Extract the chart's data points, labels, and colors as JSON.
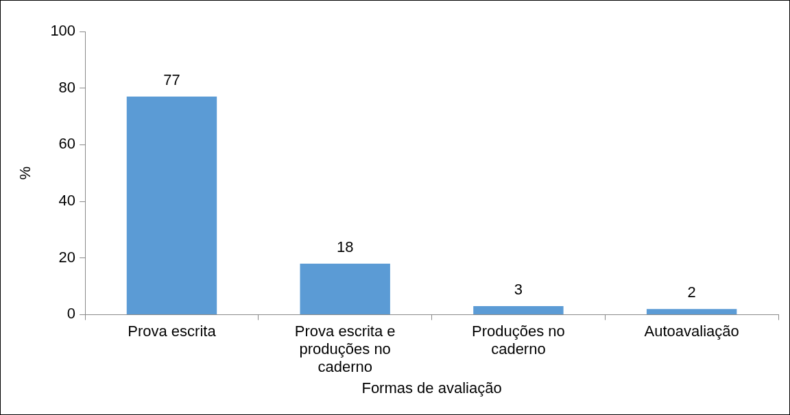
{
  "chart_data": {
    "type": "bar",
    "xlabel": "Formas de avaliação",
    "ylabel": "%",
    "categories": [
      "Prova escrita",
      "Prova escrita e produções no caderno",
      "Produções no caderno",
      "Autoavaliação"
    ],
    "values": [
      77,
      18,
      3,
      2
    ],
    "color": "#5b9bd5",
    "ylim": [
      0,
      100
    ],
    "yticks": [
      0,
      20,
      40,
      60,
      80,
      100
    ],
    "grid": false,
    "legend": false,
    "data_labels": true
  }
}
